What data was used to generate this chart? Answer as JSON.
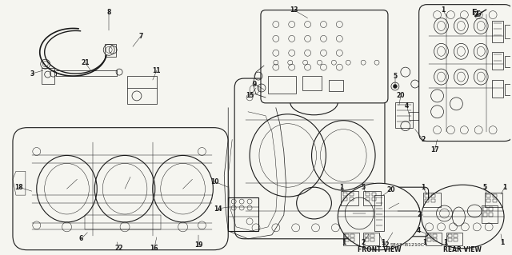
{
  "bg_color": "#f5f5f0",
  "line_color": "#1a1a1a",
  "lw_main": 0.8,
  "lw_detail": 0.5,
  "lw_thin": 0.35,
  "fig_w": 6.4,
  "fig_h": 3.19,
  "dpi": 100,
  "fr_text": "Fr.",
  "front_view_text": "FRONT VIEW",
  "rear_view_text": "REAR VIEW",
  "part_number_text": "S843–B1210C"
}
